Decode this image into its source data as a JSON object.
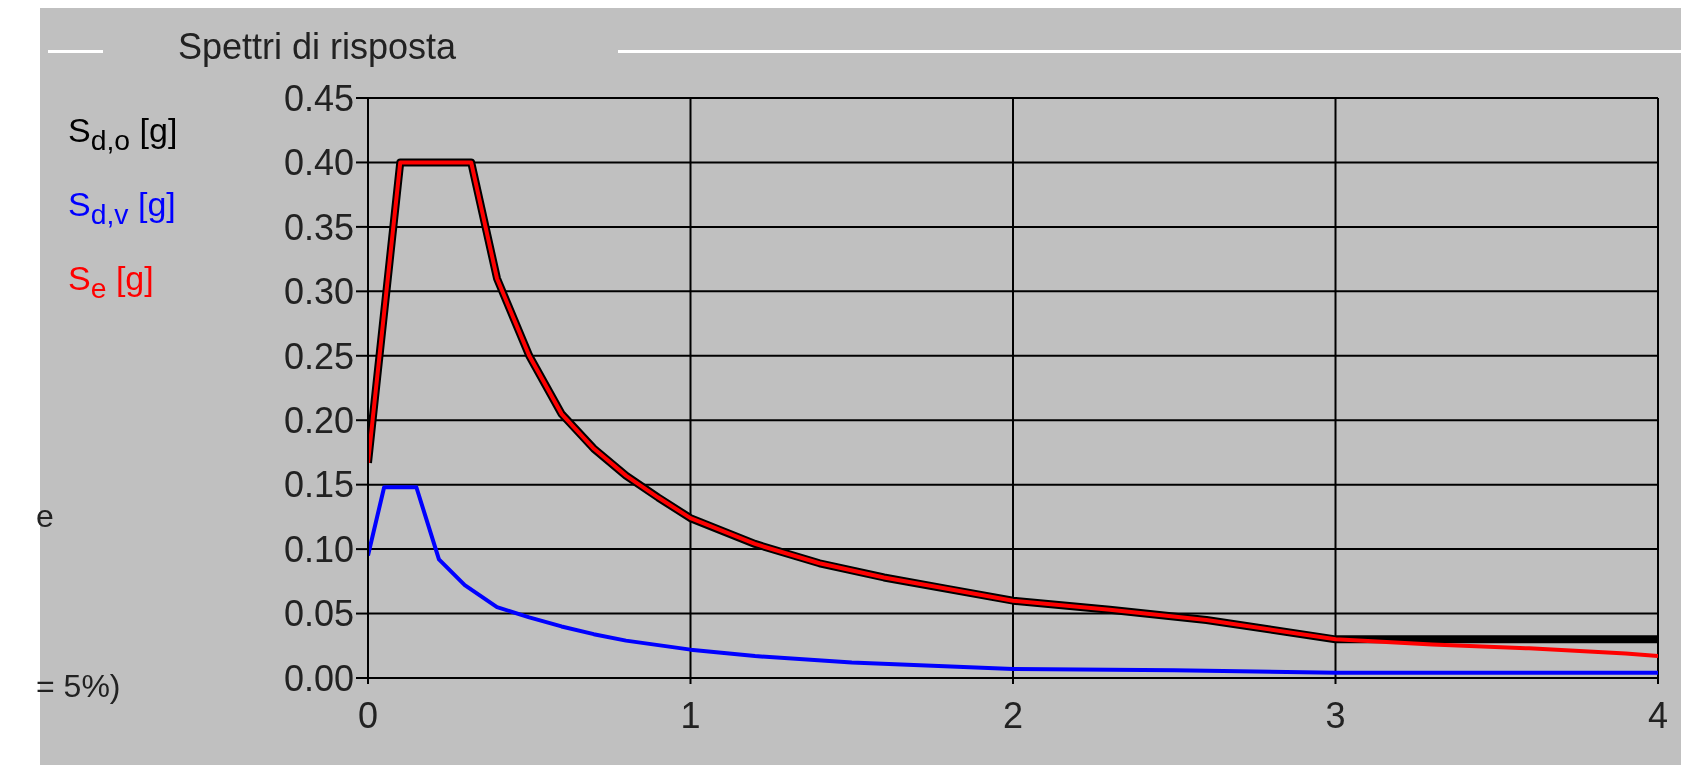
{
  "chart_data": {
    "type": "line",
    "title": "Spettri di risposta",
    "annotations": [
      "e",
      "= 5%)"
    ],
    "xlim": [
      0,
      4
    ],
    "xticks": [
      0,
      1,
      2,
      3,
      4
    ],
    "ylim": [
      0,
      0.45
    ],
    "yticks": [
      {
        "value": 0,
        "label": "0.00"
      },
      {
        "value": 0.05,
        "label": "0.05"
      },
      {
        "value": 0.1,
        "label": "0.10"
      },
      {
        "value": 0.15,
        "label": "0.15"
      },
      {
        "value": 0.2,
        "label": "0.20"
      },
      {
        "value": 0.25,
        "label": "0.25"
      },
      {
        "value": 0.3,
        "label": "0.30"
      },
      {
        "value": 0.35,
        "label": "0.35"
      },
      {
        "value": 0.4,
        "label": "0.40"
      },
      {
        "value": 0.45,
        "label": "0.45"
      }
    ],
    "grid": true,
    "legend": "left",
    "marker": "none",
    "line_style": "solid",
    "series": [
      {
        "name": "S$_{d,o}$ [g]",
        "color": "#000000",
        "x": [
          0,
          0.1,
          0.32,
          0.4,
          0.5,
          0.6,
          0.7,
          0.8,
          0.9,
          1.0,
          1.2,
          1.4,
          1.6,
          1.8,
          2.0,
          2.3,
          2.6,
          3.0,
          3.5,
          4.0
        ],
        "values": [
          0.167,
          0.4,
          0.4,
          0.31,
          0.25,
          0.205,
          0.178,
          0.157,
          0.14,
          0.124,
          0.104,
          0.089,
          0.078,
          0.069,
          0.06,
          0.053,
          0.045,
          0.03,
          0.03,
          0.03
        ]
      },
      {
        "name": "S$_{d,v}$ [g]",
        "color": "#0000ff",
        "x": [
          0,
          0.05,
          0.15,
          0.22,
          0.3,
          0.4,
          0.5,
          0.6,
          0.7,
          0.8,
          1.0,
          1.2,
          1.5,
          2.0,
          2.5,
          3.0,
          4.0
        ],
        "values": [
          0.095,
          0.148,
          0.148,
          0.092,
          0.072,
          0.055,
          0.047,
          0.04,
          0.034,
          0.029,
          0.022,
          0.017,
          0.012,
          0.007,
          0.006,
          0.004,
          0.004
        ]
      },
      {
        "name": "S$_{e}$ [g]",
        "color": "#ff0000",
        "x": [
          0,
          0.1,
          0.32,
          0.4,
          0.5,
          0.6,
          0.7,
          0.8,
          0.9,
          1.0,
          1.2,
          1.4,
          1.6,
          1.8,
          2.0,
          2.3,
          2.6,
          3.0,
          3.3,
          3.6,
          3.9,
          4.0
        ],
        "values": [
          0.167,
          0.4,
          0.4,
          0.31,
          0.25,
          0.205,
          0.178,
          0.157,
          0.14,
          0.124,
          0.104,
          0.089,
          0.078,
          0.069,
          0.06,
          0.053,
          0.045,
          0.03,
          0.026,
          0.023,
          0.019,
          0.017
        ]
      }
    ]
  }
}
